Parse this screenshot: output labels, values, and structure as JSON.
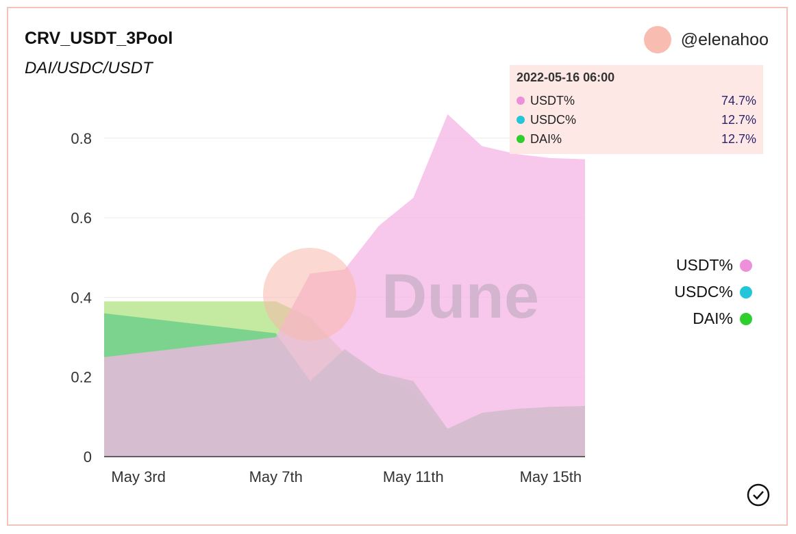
{
  "header": {
    "title": "CRV_USDT_3Pool",
    "subtitle": "DAI/USDC/USDT",
    "username": "@elenahoo"
  },
  "watermark": "Dune",
  "colors": {
    "usdt": "#f5b5e6",
    "usdc": "#a9e4a0",
    "dai": "#6fcf8b",
    "dai_top": "#b9e68f",
    "usdt_dot": "#ee8fdc",
    "usdc_dot": "#23c6d9",
    "dai_dot": "#2fce2f",
    "tooltip_bg": "#fde8e5"
  },
  "tooltip": {
    "timestamp": "2022-05-16 06:00",
    "rows": [
      {
        "label": "USDT%",
        "value": "74.7%"
      },
      {
        "label": "USDC%",
        "value": "12.7%"
      },
      {
        "label": "DAI%",
        "value": "12.7%"
      }
    ]
  },
  "legend": [
    {
      "label": "USDT%"
    },
    {
      "label": "USDC%"
    },
    {
      "label": "DAI%"
    }
  ],
  "chart_data": {
    "type": "area",
    "x_ticks": [
      "May 3rd",
      "May 7th",
      "May 11th",
      "May 15th"
    ],
    "y_ticks": [
      "0",
      "0.2",
      "0.4",
      "0.6",
      "0.8"
    ],
    "ylim": [
      0,
      0.92
    ],
    "x": [
      "2022-05-02",
      "2022-05-03",
      "2022-05-04",
      "2022-05-05",
      "2022-05-06",
      "2022-05-07",
      "2022-05-08",
      "2022-05-09",
      "2022-05-10",
      "2022-05-11",
      "2022-05-12",
      "2022-05-13",
      "2022-05-14",
      "2022-05-15",
      "2022-05-16"
    ],
    "series": [
      {
        "name": "USDT%",
        "values": [
          0.25,
          0.26,
          0.27,
          0.28,
          0.29,
          0.3,
          0.46,
          0.47,
          0.58,
          0.65,
          0.86,
          0.78,
          0.76,
          0.75,
          0.747
        ]
      },
      {
        "name": "USDC%",
        "values": [
          0.36,
          0.35,
          0.34,
          0.33,
          0.32,
          0.31,
          0.19,
          0.27,
          0.21,
          0.19,
          0.07,
          0.11,
          0.12,
          0.125,
          0.127
        ]
      },
      {
        "name": "DAI%",
        "values": [
          0.39,
          0.39,
          0.39,
          0.39,
          0.39,
          0.39,
          0.35,
          0.26,
          0.21,
          0.16,
          0.07,
          0.11,
          0.12,
          0.125,
          0.127
        ]
      }
    ]
  }
}
